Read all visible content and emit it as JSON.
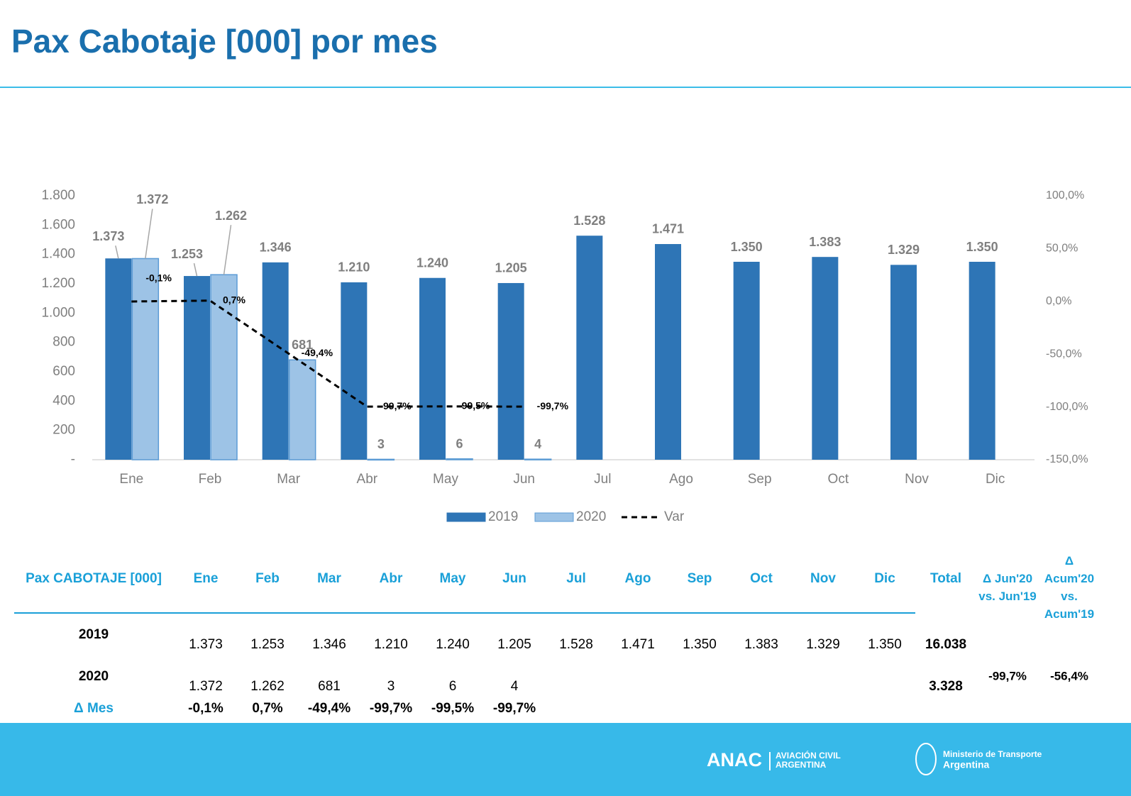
{
  "chart_data": {
    "type": "bar",
    "title": "Pax Cabotaje [000] por mes",
    "categories": [
      "Ene",
      "Feb",
      "Mar",
      "Abr",
      "May",
      "Jun",
      "Jul",
      "Ago",
      "Sep",
      "Oct",
      "Nov",
      "Dic"
    ],
    "series": [
      {
        "name": "2019",
        "color": "#2e75b6",
        "values": [
          1373,
          1253,
          1346,
          1210,
          1240,
          1205,
          1528,
          1471,
          1350,
          1383,
          1329,
          1350
        ],
        "value_labels": [
          "1.373",
          "1.253",
          "1.346",
          "1.210",
          "1.240",
          "1.205",
          "1.528",
          "1.471",
          "1.350",
          "1.383",
          "1.329",
          "1.350"
        ]
      },
      {
        "name": "2020",
        "color": "#9dc3e6",
        "edge_color": "#5b9bd5",
        "values": [
          1372,
          1262,
          681,
          3,
          6,
          4,
          null,
          null,
          null,
          null,
          null,
          null
        ],
        "value_labels": [
          "1.372",
          "1.262",
          "681",
          "3",
          "6",
          "4",
          null,
          null,
          null,
          null,
          null,
          null
        ]
      },
      {
        "name": "Var",
        "type": "line",
        "axis": "y2",
        "color": "#000000",
        "dashed": true,
        "values": [
          -0.1,
          0.7,
          -49.4,
          -99.7,
          -99.5,
          -99.7,
          null,
          null,
          null,
          null,
          null,
          null
        ],
        "value_labels": [
          "-0,1%",
          "0,7%",
          "-49,4%",
          "-99,7%",
          "-99,5%",
          "-99,7%",
          null,
          null,
          null,
          null,
          null,
          null
        ]
      }
    ],
    "ylim": [
      0,
      1800
    ],
    "yticks": [
      {
        "value": 0,
        "label": "-"
      },
      200,
      400,
      600,
      800,
      {
        "value": 1000,
        "label": "1.000"
      },
      {
        "value": 1200,
        "label": "1.200"
      },
      {
        "value": 1400,
        "label": "1.400"
      },
      {
        "value": 1600,
        "label": "1.600"
      },
      {
        "value": 1800,
        "label": "1.800"
      }
    ],
    "y2lim": [
      -150,
      100
    ],
    "y2ticks": [
      {
        "value": -150,
        "label": "-150,0%"
      },
      {
        "value": -100,
        "label": "-100,0%"
      },
      {
        "value": -50,
        "label": "-50,0%"
      },
      {
        "value": 0,
        "label": "0,0%"
      },
      {
        "value": 50,
        "label": "50,0%"
      },
      {
        "value": 100,
        "label": "100,0%"
      }
    ],
    "grid": false,
    "legend": "bottom"
  },
  "table": {
    "header": [
      "Pax CABOTAJE [000]",
      "Ene",
      "Feb",
      "Mar",
      "Abr",
      "May",
      "Jun",
      "Jul",
      "Ago",
      "Sep",
      "Oct",
      "Nov",
      "Dic",
      "Total"
    ],
    "delta_headers": [
      [
        "Δ Jun'20",
        "vs. Jun'19"
      ],
      [
        "Δ",
        "Acum'20",
        "vs.",
        "Acum'19"
      ]
    ],
    "rows": [
      {
        "label": "2019",
        "values": [
          "1.373",
          "1.253",
          "1.346",
          "1.210",
          "1.240",
          "1.205",
          "1.528",
          "1.471",
          "1.350",
          "1.383",
          "1.329",
          "1.350"
        ],
        "total": "16.038"
      },
      {
        "label": "2020",
        "values": [
          "1.372",
          "1.262",
          "681",
          "3",
          "6",
          "4"
        ],
        "total": "3.328",
        "deltas": [
          "-99,7%",
          "-56,4%"
        ]
      },
      {
        "label": "Δ Mes",
        "values": [
          "-0,1%",
          "0,7%",
          "-49,4%",
          "-99,7%",
          "-99,5%",
          "-99,7%"
        ]
      }
    ]
  },
  "footer": {
    "brand": "ANAC",
    "brand_sub": [
      "AVIACIÓN CIVIL",
      "ARGENTINA"
    ],
    "ministry": [
      "Ministerio de Transporte",
      "Argentina"
    ]
  }
}
